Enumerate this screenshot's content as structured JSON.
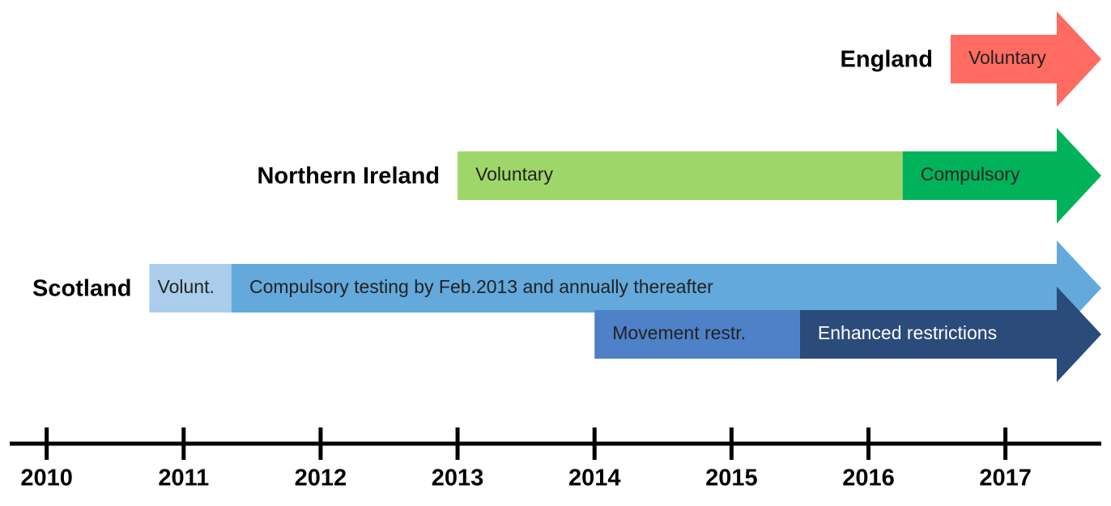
{
  "chart_data": {
    "type": "timeline",
    "xlim": [
      2009.73,
      2017.7
    ],
    "xticks": [
      2010,
      2011,
      2012,
      2013,
      2014,
      2015,
      2016,
      2017
    ],
    "rows": [
      {
        "name": "England",
        "phases": [
          {
            "label": "Voluntary",
            "start": 2016.6,
            "color": "#ff6b61",
            "text_color": "#222222"
          }
        ]
      },
      {
        "name": "Northern Ireland",
        "phases": [
          {
            "label": "Voluntary",
            "start": 2013.0,
            "color": "#9fd66a",
            "text_color": "#222222"
          },
          {
            "label": "Compulsory",
            "start": 2016.25,
            "color": "#00b25a",
            "text_color": "#222222"
          }
        ]
      },
      {
        "name": "Scotland",
        "phases": [
          {
            "label": "Volunt.",
            "start": 2010.75,
            "color": "#a9cdeb",
            "text_color": "#222222"
          },
          {
            "label": "Compulsory testing by Feb.2013 and annually thereafter",
            "start": 2011.35,
            "color": "#64a9dc",
            "text_color": "#222222"
          }
        ]
      },
      {
        "phases": [
          {
            "label": "Movement restr.",
            "start": 2014.0,
            "color": "#4f81c8",
            "text_color": "#222222"
          },
          {
            "label": "Enhanced restrictions",
            "start": 2015.5,
            "color": "#2b4b7a",
            "text_color": "#ffffff"
          }
        ]
      }
    ]
  }
}
